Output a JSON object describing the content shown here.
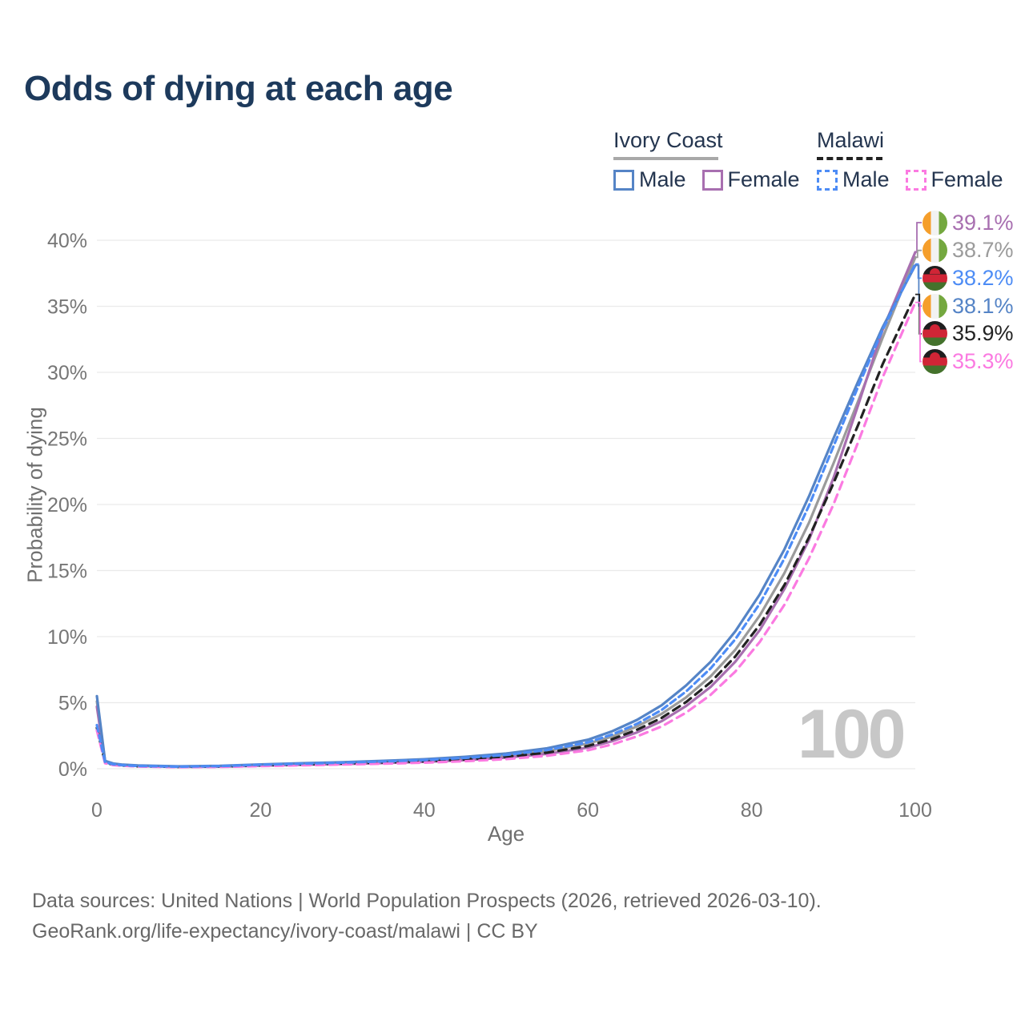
{
  "title": "Odds of dying at each age",
  "legend": {
    "groups": [
      {
        "name": "Ivory Coast",
        "underline_color": "#A8A8A8",
        "underline_style": "solid",
        "items": [
          {
            "label": "Male",
            "series": "ic-male"
          },
          {
            "label": "Female",
            "series": "ic-female"
          }
        ]
      },
      {
        "name": "Malawi",
        "underline_color": "#222222",
        "underline_style": "dashed",
        "items": [
          {
            "label": "Male",
            "series": "mw-male"
          },
          {
            "label": "Female",
            "series": "mw-female"
          }
        ]
      }
    ]
  },
  "chart_data": {
    "type": "line",
    "title": "Odds of dying at each age",
    "x_label": "Age",
    "y_label": "Probability of dying",
    "xlim": [
      0,
      100
    ],
    "ylim": [
      0,
      40
    ],
    "grid": "horizontal",
    "x_ticks": [
      {
        "value": 0,
        "label": "0"
      },
      {
        "value": 20,
        "label": "20"
      },
      {
        "value": 40,
        "label": "40"
      },
      {
        "value": 60,
        "label": "60"
      },
      {
        "value": 80,
        "label": "80"
      },
      {
        "value": 100,
        "label": "100"
      }
    ],
    "y_ticks": [
      {
        "value": 0,
        "label": "0%"
      },
      {
        "value": 5,
        "label": "5%"
      },
      {
        "value": 10,
        "label": "10%"
      },
      {
        "value": 15,
        "label": "15%"
      },
      {
        "value": 20,
        "label": "20%"
      },
      {
        "value": 25,
        "label": "25%"
      },
      {
        "value": 30,
        "label": "30%"
      },
      {
        "value": 35,
        "label": "35%"
      },
      {
        "value": 40,
        "label": "40%"
      }
    ],
    "ages": [
      0,
      1,
      2,
      3,
      5,
      10,
      15,
      20,
      25,
      30,
      35,
      40,
      45,
      50,
      55,
      60,
      63,
      66,
      69,
      72,
      75,
      78,
      81,
      84,
      87,
      90,
      93,
      96,
      100
    ],
    "series": [
      {
        "id": "ic-all",
        "name": "Ivory Coast All",
        "country": "Ivory Coast",
        "sex": "all",
        "color": "#9B9B9B",
        "dash": "none",
        "width": 3.2,
        "values": [
          5.1,
          0.55,
          0.37,
          0.3,
          0.23,
          0.16,
          0.19,
          0.28,
          0.36,
          0.43,
          0.51,
          0.62,
          0.77,
          0.99,
          1.33,
          1.9,
          2.45,
          3.2,
          4.15,
          5.4,
          7.0,
          9.0,
          11.6,
          14.8,
          18.6,
          23.1,
          27.8,
          32.6,
          38.7
        ]
      },
      {
        "id": "ic-female",
        "name": "Ivory Coast Female",
        "country": "Ivory Coast",
        "sex": "female",
        "color": "#A86FB0",
        "dash": "none",
        "width": 3.2,
        "values": [
          4.7,
          0.5,
          0.33,
          0.27,
          0.21,
          0.14,
          0.16,
          0.23,
          0.3,
          0.36,
          0.43,
          0.52,
          0.65,
          0.84,
          1.13,
          1.6,
          2.1,
          2.75,
          3.6,
          4.75,
          6.2,
          8.1,
          10.5,
          13.6,
          17.3,
          22.0,
          27.5,
          33.2,
          39.1
        ]
      },
      {
        "id": "mw-all",
        "name": "Malawi All",
        "country": "Malawi",
        "sex": "all",
        "color": "#222222",
        "dash": "10 7",
        "width": 3.2,
        "values": [
          3.1,
          0.46,
          0.31,
          0.25,
          0.19,
          0.14,
          0.17,
          0.26,
          0.33,
          0.4,
          0.48,
          0.57,
          0.71,
          0.91,
          1.22,
          1.72,
          2.25,
          2.95,
          3.85,
          5.05,
          6.55,
          8.5,
          10.9,
          13.9,
          17.5,
          21.6,
          26.0,
          30.6,
          35.9
        ]
      },
      {
        "id": "mw-female",
        "name": "Malawi Female",
        "country": "Malawi",
        "sex": "female",
        "color": "#FB7AE1",
        "dash": "10 7",
        "width": 3.2,
        "values": [
          2.9,
          0.42,
          0.28,
          0.23,
          0.17,
          0.12,
          0.14,
          0.2,
          0.26,
          0.32,
          0.38,
          0.46,
          0.57,
          0.73,
          0.98,
          1.4,
          1.85,
          2.45,
          3.2,
          4.25,
          5.6,
          7.35,
          9.6,
          12.4,
          15.9,
          20.0,
          24.7,
          29.6,
          35.3
        ]
      },
      {
        "id": "ic-male",
        "name": "Ivory Coast Male",
        "country": "Ivory Coast",
        "sex": "male",
        "color": "#5584C6",
        "dash": "none",
        "width": 3.2,
        "values": [
          5.5,
          0.6,
          0.4,
          0.32,
          0.25,
          0.18,
          0.22,
          0.33,
          0.42,
          0.5,
          0.6,
          0.72,
          0.9,
          1.15,
          1.55,
          2.2,
          2.85,
          3.7,
          4.8,
          6.3,
          8.1,
          10.4,
          13.2,
          16.6,
          20.6,
          25.0,
          29.3,
          33.4,
          38.1
        ]
      },
      {
        "id": "mw-male",
        "name": "Malawi Male",
        "country": "Malawi",
        "sex": "male",
        "color": "#4D8CF5",
        "dash": "8 5",
        "width": 3.2,
        "values": [
          3.3,
          0.5,
          0.34,
          0.27,
          0.21,
          0.16,
          0.2,
          0.3,
          0.38,
          0.46,
          0.55,
          0.66,
          0.82,
          1.05,
          1.42,
          2.0,
          2.6,
          3.4,
          4.45,
          5.85,
          7.6,
          9.8,
          12.5,
          15.9,
          19.9,
          24.4,
          28.9,
          33.2,
          38.2
        ]
      }
    ],
    "end_labels": [
      {
        "text": "39.1%",
        "flag": "ivory-coast",
        "series": "ic-female",
        "color": "#A86FB0"
      },
      {
        "text": "38.7%",
        "flag": "ivory-coast",
        "series": "ic-all",
        "color": "#9B9B9B"
      },
      {
        "text": "38.2%",
        "flag": "malawi",
        "series": "mw-male",
        "color": "#4D8CF5"
      },
      {
        "text": "38.1%",
        "flag": "ivory-coast",
        "series": "ic-male",
        "color": "#5584C6"
      },
      {
        "text": "35.9%",
        "flag": "malawi",
        "series": "mw-all",
        "color": "#222222"
      },
      {
        "text": "35.3%",
        "flag": "malawi",
        "series": "mw-female",
        "color": "#FB7AE1"
      }
    ],
    "flags": {
      "ivory-coast": {
        "colors": [
          "#F59E2B",
          "#F2F2F2",
          "#74A83F"
        ],
        "orientation": "vertical"
      },
      "malawi": {
        "colors": [
          "#1E1E1E",
          "#D02536",
          "#44722C"
        ],
        "orientation": "horizontal",
        "sun_color": "#D02536"
      }
    },
    "watermark": "100"
  },
  "footer": {
    "line1": "Data sources: United Nations | World Population Prospects (2026, retrieved 2026-03-10).",
    "line2": "GeoRank.org/life-expectancy/ivory-coast/malawi | CC BY"
  },
  "theme": {
    "title_color": "#1D3A5C",
    "axis_text_color": "#767676",
    "gridline_color": "#EAEAEA",
    "footer_color": "#686868",
    "watermark_color": "#C7C7C7"
  }
}
